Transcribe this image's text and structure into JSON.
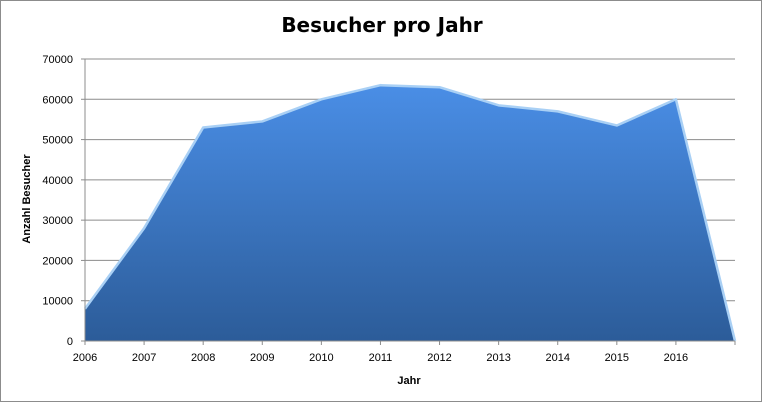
{
  "chart_data": {
    "type": "area",
    "title": "Besucher pro Jahr",
    "xlabel": "Jahr",
    "ylabel": "Anzahl Besucher",
    "x": [
      "2006",
      "2007",
      "2008",
      "2009",
      "2010",
      "2011",
      "2012",
      "2013",
      "2014",
      "2015",
      "2016",
      ""
    ],
    "values": [
      8000,
      28000,
      53000,
      54500,
      60000,
      63500,
      63000,
      58500,
      57000,
      53500,
      60000,
      0
    ],
    "ylim": [
      0,
      70000
    ],
    "yticks": [
      "0",
      "10000",
      "20000",
      "30000",
      "40000",
      "50000",
      "60000",
      "70000"
    ],
    "grid": true,
    "legend": "none",
    "colors": {
      "fill_top": "#4a8ee6",
      "fill_bottom": "#2c5c99",
      "edge": "#a9d0f5",
      "grid": "#8c8c8c"
    }
  }
}
